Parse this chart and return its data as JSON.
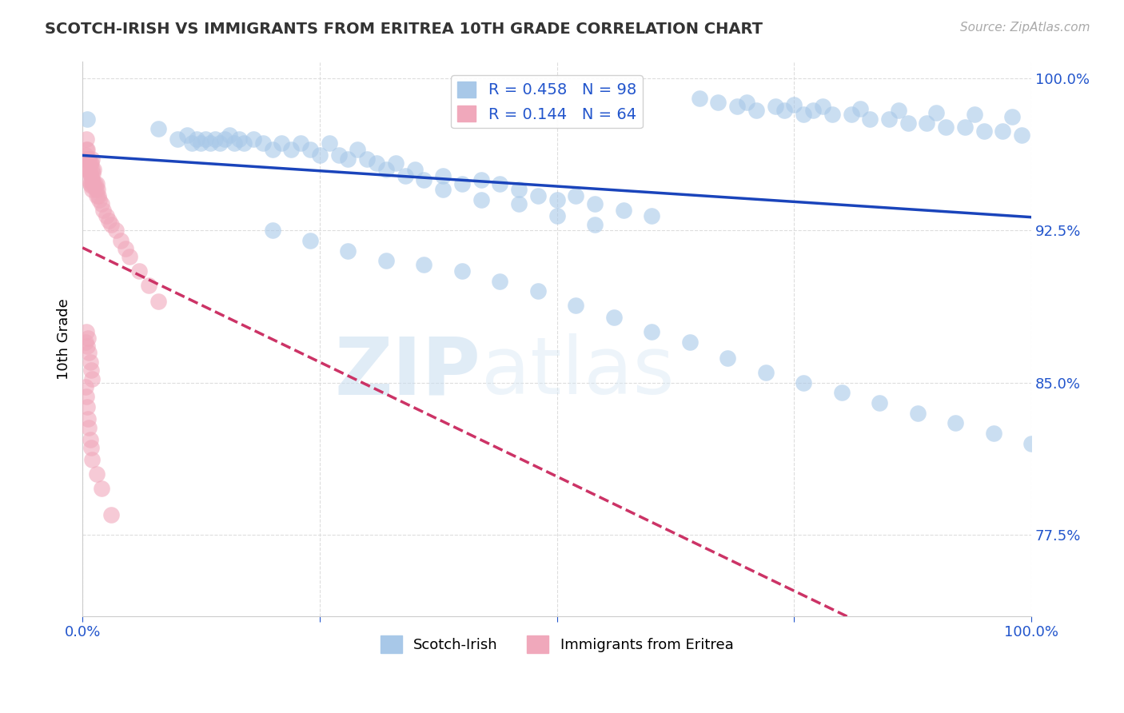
{
  "title": "SCOTCH-IRISH VS IMMIGRANTS FROM ERITREA 10TH GRADE CORRELATION CHART",
  "source_text": "Source: ZipAtlas.com",
  "ylabel": "10th Grade",
  "xlim": [
    0.0,
    1.0
  ],
  "ylim": [
    0.735,
    1.008
  ],
  "yticks": [
    0.775,
    0.85,
    0.925,
    1.0
  ],
  "ytick_labels": [
    "77.5%",
    "85.0%",
    "92.5%",
    "100.0%"
  ],
  "xtick_labels": [
    "0.0%",
    "100.0%"
  ],
  "blue_R": 0.458,
  "blue_N": 98,
  "pink_R": 0.144,
  "pink_N": 64,
  "blue_color": "#a8c8e8",
  "pink_color": "#f0a8bb",
  "blue_trend_color": "#1a44bb",
  "pink_trend_color": "#cc3366",
  "watermark_zip": "ZIP",
  "watermark_atlas": "atlas",
  "legend_label_blue": "Scotch-Irish",
  "legend_label_pink": "Immigrants from Eritrea",
  "blue_scatter_x": [
    0.005,
    0.08,
    0.1,
    0.11,
    0.115,
    0.12,
    0.125,
    0.13,
    0.135,
    0.14,
    0.145,
    0.15,
    0.155,
    0.16,
    0.165,
    0.17,
    0.18,
    0.19,
    0.2,
    0.21,
    0.22,
    0.23,
    0.24,
    0.25,
    0.26,
    0.27,
    0.28,
    0.29,
    0.3,
    0.31,
    0.32,
    0.33,
    0.34,
    0.35,
    0.36,
    0.38,
    0.4,
    0.42,
    0.44,
    0.46,
    0.48,
    0.5,
    0.52,
    0.54,
    0.57,
    0.6,
    0.38,
    0.42,
    0.46,
    0.5,
    0.54,
    0.2,
    0.24,
    0.28,
    0.32,
    0.36,
    0.4,
    0.44,
    0.48,
    0.52,
    0.56,
    0.6,
    0.64,
    0.68,
    0.72,
    0.76,
    0.8,
    0.84,
    0.88,
    0.92,
    0.96,
    1.0,
    0.65,
    0.7,
    0.75,
    0.78,
    0.82,
    0.86,
    0.9,
    0.94,
    0.98,
    0.67,
    0.73,
    0.77,
    0.81,
    0.85,
    0.89,
    0.93,
    0.97,
    0.69,
    0.74,
    0.79,
    0.83,
    0.87,
    0.91,
    0.95,
    0.99,
    0.71,
    0.76
  ],
  "blue_scatter_y": [
    0.98,
    0.975,
    0.97,
    0.972,
    0.968,
    0.97,
    0.968,
    0.97,
    0.968,
    0.97,
    0.968,
    0.97,
    0.972,
    0.968,
    0.97,
    0.968,
    0.97,
    0.968,
    0.965,
    0.968,
    0.965,
    0.968,
    0.965,
    0.962,
    0.968,
    0.962,
    0.96,
    0.965,
    0.96,
    0.958,
    0.955,
    0.958,
    0.952,
    0.955,
    0.95,
    0.952,
    0.948,
    0.95,
    0.948,
    0.945,
    0.942,
    0.94,
    0.942,
    0.938,
    0.935,
    0.932,
    0.945,
    0.94,
    0.938,
    0.932,
    0.928,
    0.925,
    0.92,
    0.915,
    0.91,
    0.908,
    0.905,
    0.9,
    0.895,
    0.888,
    0.882,
    0.875,
    0.87,
    0.862,
    0.855,
    0.85,
    0.845,
    0.84,
    0.835,
    0.83,
    0.825,
    0.82,
    0.99,
    0.988,
    0.987,
    0.986,
    0.985,
    0.984,
    0.983,
    0.982,
    0.981,
    0.988,
    0.986,
    0.984,
    0.982,
    0.98,
    0.978,
    0.976,
    0.974,
    0.986,
    0.984,
    0.982,
    0.98,
    0.978,
    0.976,
    0.974,
    0.972,
    0.984,
    0.982
  ],
  "pink_scatter_x": [
    0.002,
    0.003,
    0.004,
    0.004,
    0.005,
    0.005,
    0.005,
    0.006,
    0.006,
    0.007,
    0.007,
    0.007,
    0.008,
    0.008,
    0.008,
    0.009,
    0.009,
    0.009,
    0.01,
    0.01,
    0.01,
    0.01,
    0.011,
    0.011,
    0.012,
    0.012,
    0.013,
    0.014,
    0.015,
    0.015,
    0.016,
    0.017,
    0.018,
    0.02,
    0.022,
    0.025,
    0.028,
    0.03,
    0.035,
    0.04,
    0.045,
    0.05,
    0.06,
    0.07,
    0.08,
    0.003,
    0.004,
    0.005,
    0.006,
    0.007,
    0.008,
    0.009,
    0.01,
    0.003,
    0.004,
    0.005,
    0.006,
    0.007,
    0.008,
    0.009,
    0.01,
    0.015,
    0.02,
    0.03
  ],
  "pink_scatter_y": [
    0.96,
    0.962,
    0.965,
    0.97,
    0.955,
    0.96,
    0.965,
    0.955,
    0.96,
    0.95,
    0.955,
    0.96,
    0.948,
    0.953,
    0.958,
    0.947,
    0.952,
    0.958,
    0.945,
    0.95,
    0.955,
    0.96,
    0.948,
    0.953,
    0.948,
    0.955,
    0.948,
    0.945,
    0.942,
    0.948,
    0.945,
    0.942,
    0.94,
    0.938,
    0.935,
    0.932,
    0.93,
    0.928,
    0.925,
    0.92,
    0.916,
    0.912,
    0.905,
    0.898,
    0.89,
    0.87,
    0.875,
    0.868,
    0.872,
    0.865,
    0.86,
    0.856,
    0.852,
    0.848,
    0.843,
    0.838,
    0.832,
    0.828,
    0.822,
    0.818,
    0.812,
    0.805,
    0.798,
    0.785
  ]
}
